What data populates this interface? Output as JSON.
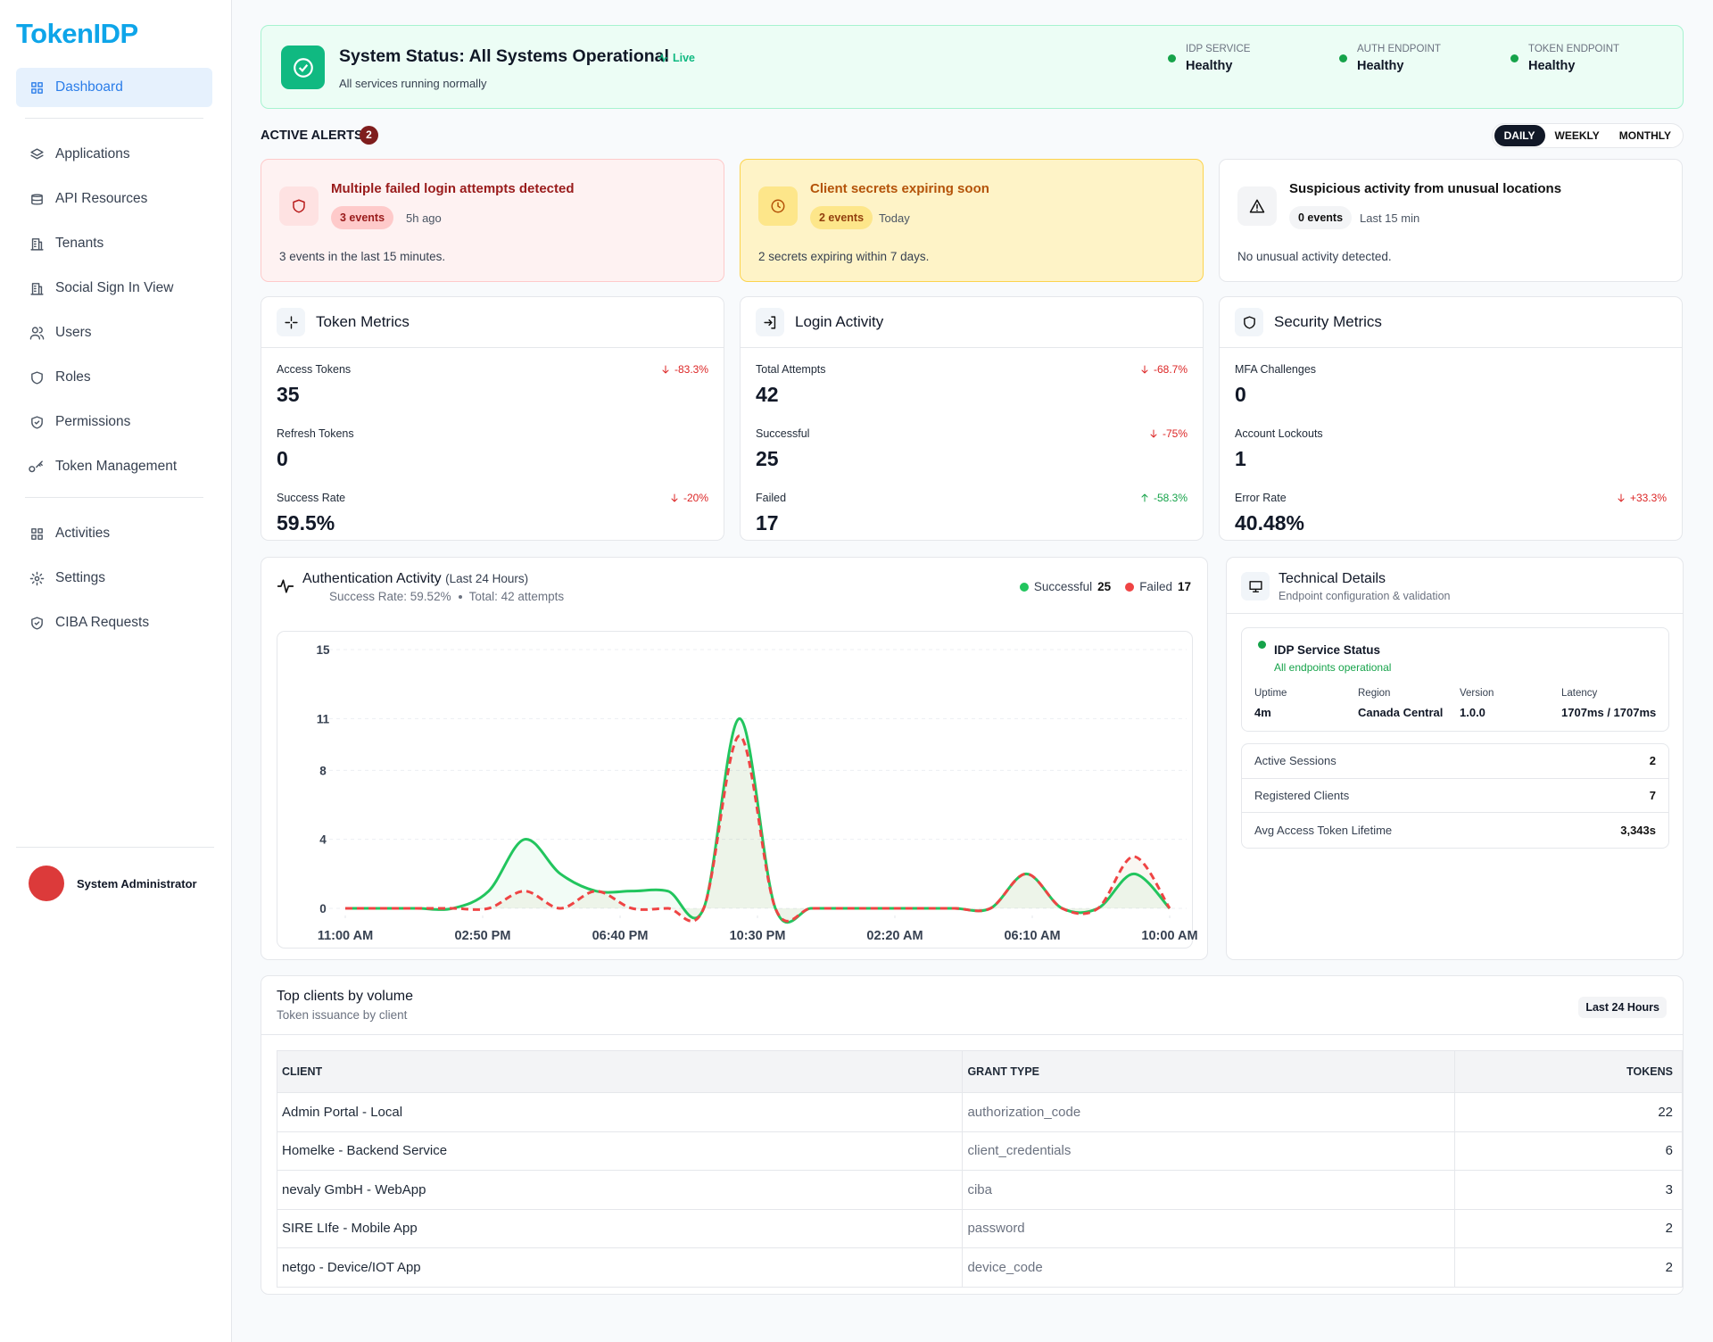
{
  "sidebar": {
    "logo": "TokenIDP",
    "nav": [
      [
        "Dashboard"
      ],
      [
        "Applications",
        "API Resources",
        "Tenants",
        "Social Sign In View",
        "Users",
        "Roles",
        "Permissions",
        "Token Management"
      ],
      [
        "Activities",
        "Settings",
        "CIBA Requests"
      ]
    ],
    "user": "System Administrator"
  },
  "status": {
    "title": "System Status: All Systems Operational",
    "live": "Live",
    "subtitle": "All services running normally",
    "services": [
      {
        "label": "IDP SERVICE",
        "value": "Healthy"
      },
      {
        "label": "AUTH ENDPOINT",
        "value": "Healthy"
      },
      {
        "label": "TOKEN ENDPOINT",
        "value": "Healthy"
      }
    ]
  },
  "alerts": {
    "title": "ACTIVE ALERTS",
    "count": 2,
    "periods": [
      "DAILY",
      "WEEKLY",
      "MONTHLY"
    ],
    "cards": [
      {
        "title": "Multiple failed login attempts detected",
        "badge": "3 events",
        "time": "5h ago",
        "text": "3 events in the last 15 minutes."
      },
      {
        "title": "Client secrets expiring soon",
        "badge": "2 events",
        "time": "Today",
        "text": "2 secrets expiring within 7 days."
      },
      {
        "title": "Suspicious activity from unusual locations",
        "badge": "0 events",
        "time": "Last 15 min",
        "text": "No unusual activity detected."
      }
    ]
  },
  "metrics": [
    {
      "title": "Token Metrics",
      "items": [
        {
          "label": "Access Tokens",
          "value": 35,
          "change": "-83.3%",
          "trend": "down",
          "color": "#dc2626"
        },
        {
          "label": "Refresh Tokens",
          "value": 0
        },
        {
          "label": "Success Rate",
          "value": "59.5%",
          "change": "-20%",
          "trend": "down",
          "color": "#dc2626"
        }
      ]
    },
    {
      "title": "Login Activity",
      "items": [
        {
          "label": "Total Attempts",
          "value": 42,
          "change": "-68.7%",
          "trend": "down",
          "color": "#dc2626"
        },
        {
          "label": "Successful",
          "value": 25,
          "change": "-75%",
          "trend": "down",
          "color": "#dc2626"
        },
        {
          "label": "Failed",
          "value": 17,
          "change": "-58.3%",
          "trend": "up",
          "color": "#16a34a"
        }
      ]
    },
    {
      "title": "Security Metrics",
      "items": [
        {
          "label": "MFA Challenges",
          "value": 0
        },
        {
          "label": "Account Lockouts",
          "value": 1
        },
        {
          "label": "Error Rate",
          "value": "40.48%",
          "change": "+33.3%",
          "trend": "down",
          "color": "#dc2626"
        }
      ]
    }
  ],
  "activity": {
    "title": "Authentication Activity",
    "period": "(Last 24 Hours)",
    "success_rate": "Success Rate: 59.52%",
    "total": "Total: 42 attempts",
    "totals": [
      25,
      17
    ],
    "chart_data": {
      "type": "line",
      "x": [
        0,
        1,
        2,
        3,
        4,
        5,
        6,
        7,
        8,
        9,
        10,
        11,
        12,
        13,
        14,
        15,
        16,
        17,
        18,
        19,
        20,
        21,
        22,
        23
      ],
      "xlim": [
        0,
        23
      ],
      "xticks": [
        {
          "value": 0,
          "label": "11:00 AM"
        },
        {
          "value": 3.833,
          "label": "02:50 PM"
        },
        {
          "value": 7.667,
          "label": "06:40 PM"
        },
        {
          "value": 11.5,
          "label": "10:30 PM"
        },
        {
          "value": 15.333,
          "label": "02:20 AM"
        },
        {
          "value": 19.167,
          "label": "06:10 AM"
        },
        {
          "value": 23,
          "label": "10:00 AM"
        }
      ],
      "ylim": [
        0,
        15
      ],
      "yticks": [
        0,
        4,
        8,
        11,
        15
      ],
      "grid": true,
      "series": [
        {
          "name": "Successful",
          "color": "#22c55e",
          "values": [
            0,
            0,
            0,
            0,
            1,
            4,
            2,
            1,
            1,
            1,
            0,
            11,
            0,
            0,
            0,
            0,
            0,
            0,
            0,
            2,
            0,
            0,
            2,
            0
          ]
        },
        {
          "name": "Failed",
          "color": "#ef4444",
          "values": [
            0,
            0,
            0,
            0,
            0,
            1,
            0,
            1,
            0,
            0,
            0,
            10,
            0,
            0,
            0,
            0,
            0,
            0,
            0,
            2,
            0,
            0,
            3,
            0
          ]
        }
      ]
    }
  },
  "tech": {
    "title": "Technical Details",
    "subtitle": "Endpoint configuration & validation",
    "status_title": "IDP Service Status",
    "status_text": "All endpoints operational",
    "fields": [
      {
        "label": "Uptime",
        "value": "4m"
      },
      {
        "label": "Region",
        "value": "Canada Central"
      },
      {
        "label": "Version",
        "value": "1.0.0"
      },
      {
        "label": "Latency",
        "value": "1707ms / 1707ms"
      }
    ],
    "stats": [
      {
        "label": "Active Sessions",
        "value": 2
      },
      {
        "label": "Registered Clients",
        "value": 7
      },
      {
        "label": "Avg Access Token Lifetime",
        "value": "3,343s"
      }
    ]
  },
  "clients": {
    "title": "Top clients by volume",
    "subtitle": "Token issuance by client",
    "period": "Last 24 Hours",
    "columns": [
      "CLIENT",
      "GRANT TYPE",
      "TOKENS"
    ],
    "rows": [
      [
        "Admin Portal - Local",
        "authorization_code",
        22
      ],
      [
        "Homelke - Backend Service",
        "client_credentials",
        6
      ],
      [
        "nevaly GmbH - WebApp",
        "ciba",
        3
      ],
      [
        "SIRE LIfe - Mobile App",
        "password",
        2
      ],
      [
        "netgo - Device/IOT App",
        "device_code",
        2
      ]
    ]
  }
}
